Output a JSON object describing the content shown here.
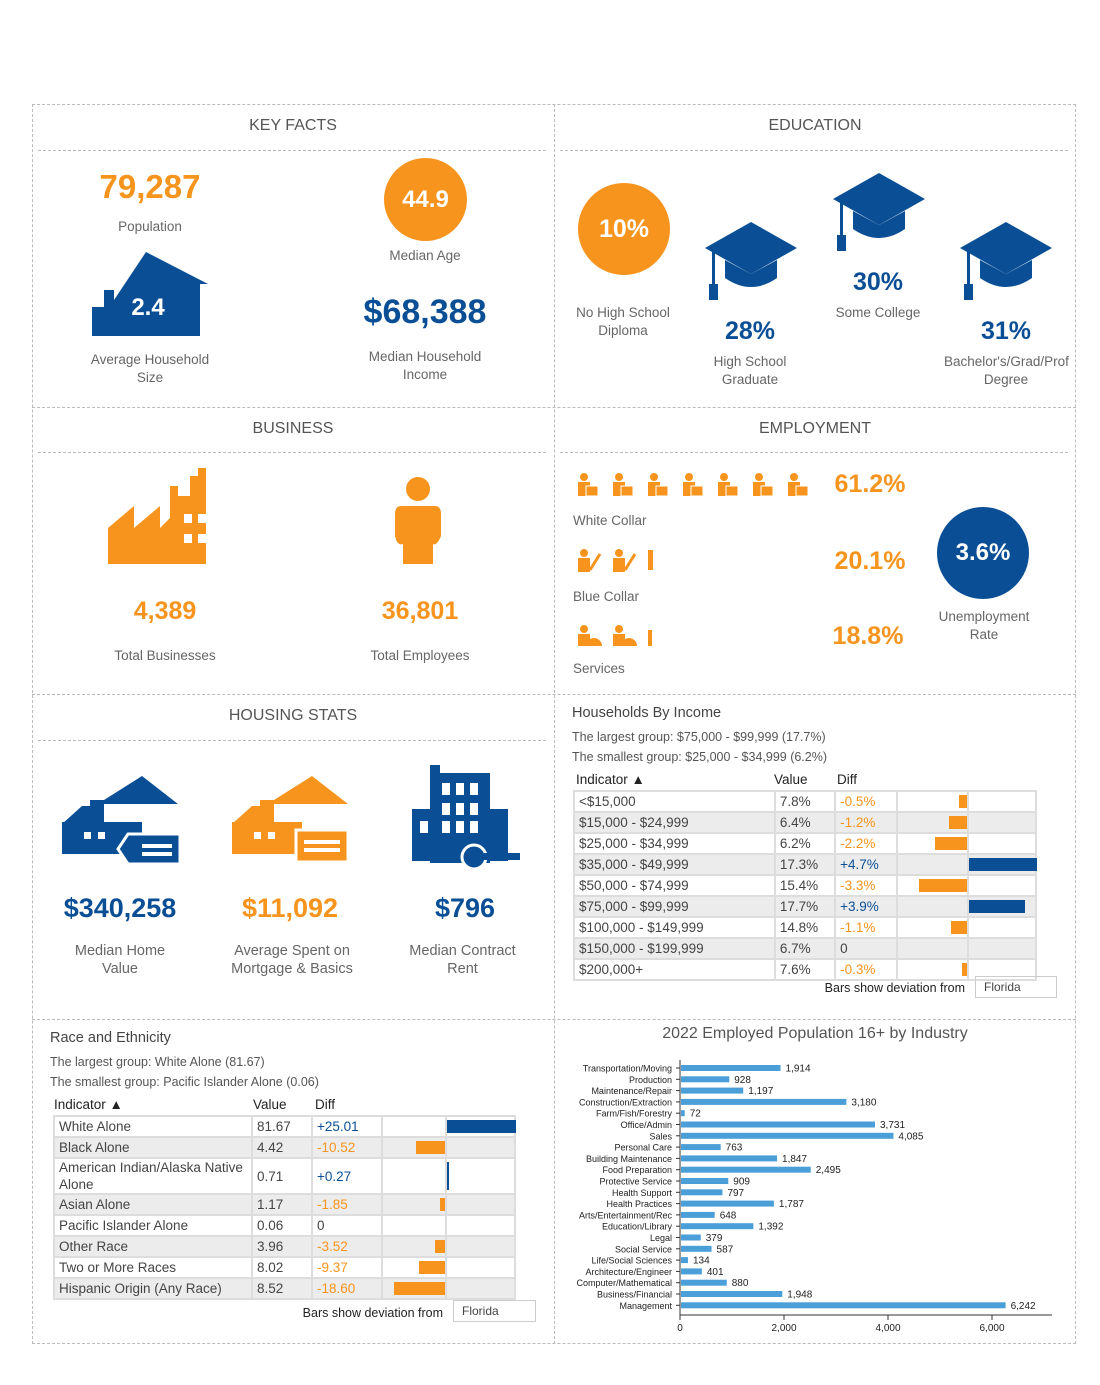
{
  "colors": {
    "orange": "#f7941d",
    "blue": "#0a4f96",
    "bar_blue": "#4a9fd8"
  },
  "key_facts": {
    "title": "KEY FACTS",
    "population": "79,287",
    "population_label": "Population",
    "median_age": "44.9",
    "median_age_label": "Median Age",
    "household_size": "2.4",
    "household_size_label": "Average Household Size",
    "median_income": "$68,388",
    "median_income_label": "Median Household Income"
  },
  "education": {
    "title": "EDUCATION",
    "items": [
      {
        "value": "10%",
        "label": "No High School Diploma"
      },
      {
        "value": "28%",
        "label": "High School Graduate"
      },
      {
        "value": "30%",
        "label": "Some College"
      },
      {
        "value": "31%",
        "label": "Bachelor's/Grad/Prof Degree"
      }
    ]
  },
  "business": {
    "title": "BUSINESS",
    "total_businesses": "4,389",
    "total_businesses_label": "Total Businesses",
    "total_employees": "36,801",
    "total_employees_label": "Total Employees"
  },
  "employment": {
    "title": "EMPLOYMENT",
    "white_collar": "61.2%",
    "white_collar_label": "White Collar",
    "blue_collar": "20.1%",
    "blue_collar_label": "Blue Collar",
    "services": "18.8%",
    "services_label": "Services",
    "unemployment": "3.6%",
    "unemployment_label": "Unemployment Rate"
  },
  "housing": {
    "title": "HOUSING STATS",
    "home_value": "$340,258",
    "home_value_label": "Median Home Value",
    "mortgage": "$11,092",
    "mortgage_label": "Average Spent on Mortgage & Basics",
    "rent": "$796",
    "rent_label": "Median Contract Rent"
  },
  "income": {
    "title": "Households By Income",
    "largest": "The largest group: $75,000 - $99,999 (17.7%)",
    "smallest": "The smallest group: $25,000 - $34,999 (6.2%)",
    "col_indicator": "Indicator ▲",
    "col_value": "Value",
    "col_diff": "Diff",
    "footer": "Bars show deviation from",
    "compare": "Florida",
    "rows": [
      {
        "indicator": "<$15,000",
        "value": "7.8%",
        "diff": "-0.5%",
        "d": -0.5
      },
      {
        "indicator": "$15,000 - $24,999",
        "value": "6.4%",
        "diff": "-1.2%",
        "d": -1.2
      },
      {
        "indicator": "$25,000 - $34,999",
        "value": "6.2%",
        "diff": "-2.2%",
        "d": -2.2
      },
      {
        "indicator": "$35,000 - $49,999",
        "value": "17.3%",
        "diff": "+4.7%",
        "d": 4.7
      },
      {
        "indicator": "$50,000 - $74,999",
        "value": "15.4%",
        "diff": "-3.3%",
        "d": -3.3
      },
      {
        "indicator": "$75,000 - $99,999",
        "value": "17.7%",
        "diff": "+3.9%",
        "d": 3.9
      },
      {
        "indicator": "$100,000 - $149,999",
        "value": "14.8%",
        "diff": "-1.1%",
        "d": -1.1
      },
      {
        "indicator": "$150,000 - $199,999",
        "value": "6.7%",
        "diff": "0",
        "d": 0
      },
      {
        "indicator": "$200,000+",
        "value": "7.6%",
        "diff": "-0.3%",
        "d": -0.3
      }
    ]
  },
  "race": {
    "title": "Race and Ethnicity",
    "largest": "The largest group: White Alone (81.67)",
    "smallest": "The smallest group: Pacific Islander Alone (0.06)",
    "col_indicator": "Indicator ▲",
    "col_value": "Value",
    "col_diff": "Diff",
    "footer": "Bars show deviation from",
    "compare": "Florida",
    "rows": [
      {
        "indicator": "White Alone",
        "value": "81.67",
        "diff": "+25.01",
        "d": 25.01
      },
      {
        "indicator": "Black Alone",
        "value": "4.42",
        "diff": "-10.52",
        "d": -10.52
      },
      {
        "indicator": "American Indian/Alaska Native Alone",
        "value": "0.71",
        "diff": "+0.27",
        "d": 0.27
      },
      {
        "indicator": "Asian Alone",
        "value": "1.17",
        "diff": "-1.85",
        "d": -1.85
      },
      {
        "indicator": "Pacific Islander Alone",
        "value": "0.06",
        "diff": "0",
        "d": 0
      },
      {
        "indicator": "Other Race",
        "value": "3.96",
        "diff": "-3.52",
        "d": -3.52
      },
      {
        "indicator": "Two or More Races",
        "value": "8.02",
        "diff": "-9.37",
        "d": -9.37
      },
      {
        "indicator": "Hispanic Origin (Any Race)",
        "value": "8.52",
        "diff": "-18.60",
        "d": -18.6
      }
    ]
  },
  "chart_data": {
    "type": "bar",
    "orientation": "horizontal",
    "title": "2022 Employed Population 16+ by Industry",
    "xlim": [
      0,
      7000
    ],
    "xticks": [
      "0",
      "2,000",
      "4,000",
      "6,000"
    ],
    "grid": false,
    "categories": [
      "Transportation/Moving",
      "Production",
      "Maintenance/Repair",
      "Construction/Extraction",
      "Farm/Fish/Forestry",
      "Office/Admin",
      "Sales",
      "Personal Care",
      "Building Maintenance",
      "Food Preparation",
      "Protective Service",
      "Health Support",
      "Health Practices",
      "Arts/Entertainment/Rec",
      "Education/Library",
      "Legal",
      "Social Service",
      "Life/Social Sciences",
      "Architecture/Engineer",
      "Computer/Mathematical",
      "Business/Financial",
      "Management"
    ],
    "values": [
      1914,
      928,
      1197,
      3180,
      72,
      3731,
      4085,
      763,
      1847,
      2495,
      909,
      797,
      1787,
      648,
      1392,
      379,
      587,
      134,
      401,
      880,
      1948,
      6242
    ],
    "labels": [
      "1,914",
      "928",
      "1,197",
      "3,180",
      "72",
      "3,731",
      "4,085",
      "763",
      "1,847",
      "2,495",
      "909",
      "797",
      "1,787",
      "648",
      "1,392",
      "379",
      "587",
      "134",
      "401",
      "880",
      "1,948",
      "6,242"
    ]
  }
}
